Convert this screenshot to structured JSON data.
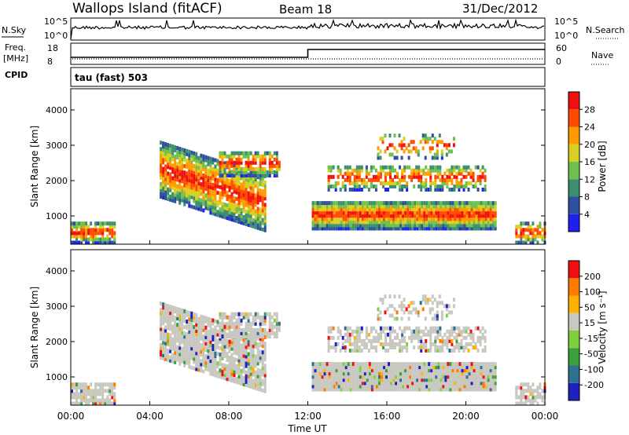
{
  "header": {
    "title": "Wallops Island (fitACF)",
    "beam": "Beam 18",
    "date": "31/Dec/2012"
  },
  "panels": {
    "nsky_label": "N.Sky",
    "nsearch_label": "N.Search",
    "freq_label_line1": "Freq.",
    "freq_label_line2": "[MHz]",
    "cpid_label": "CPID",
    "nave_label": "Nave",
    "scale_top": "10^5",
    "scale_bottom": "10^0",
    "freq_ticks": [
      "18",
      "8"
    ],
    "nave_ticks": [
      "60",
      "0"
    ],
    "cpid_text": "tau (fast) 503"
  },
  "chart_data": [
    {
      "type": "heatmap",
      "name": "power-panel",
      "ylabel": "Slant Range [km]",
      "yticks": [
        1000,
        2000,
        3000,
        4000
      ],
      "ylim": [
        200,
        4600
      ],
      "colorbar_label": "Power [dB]",
      "colorbar_ticks": [
        "28",
        "24",
        "20",
        "16",
        "12",
        "8",
        "4"
      ],
      "colors": [
        "#1f1ff0",
        "#2f4f9f",
        "#3b8f6f",
        "#6fc04f",
        "#d8d020",
        "#ff9a00",
        "#ff4a00",
        "#ee1010"
      ]
    },
    {
      "type": "heatmap",
      "name": "velocity-panel",
      "ylabel": "Slant Range [km]",
      "yticks": [
        1000,
        2000,
        3000,
        4000
      ],
      "ylim": [
        200,
        4600
      ],
      "colorbar_label": "Velocity [m s⁻¹]",
      "colorbar_ticks": [
        "200",
        "100",
        "50",
        "15",
        "-15",
        "-50",
        "-100",
        "-200"
      ],
      "colors": [
        "#2020c0",
        "#2f6f8f",
        "#3c9f3c",
        "#7fd040",
        "#c8c8c0",
        "#ffb000",
        "#ff7a00",
        "#ee1010"
      ]
    }
  ],
  "xaxis": {
    "xlabel": "Time UT",
    "ticks": [
      "00:00",
      "04:00",
      "08:00",
      "12:00",
      "16:00",
      "20:00",
      "00:00"
    ]
  }
}
